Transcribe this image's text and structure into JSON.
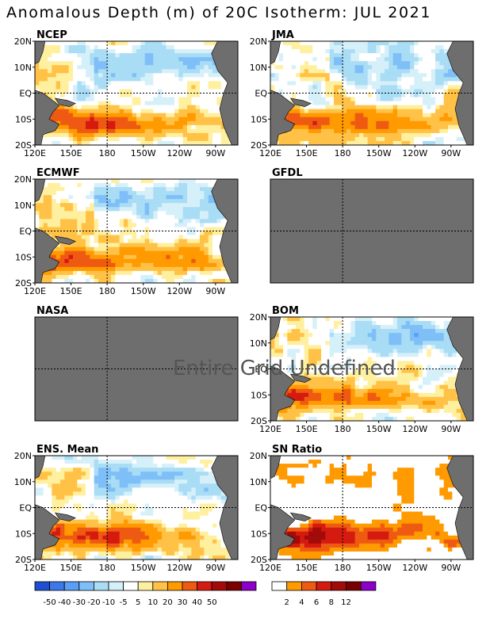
{
  "chart_data": {
    "type": "heatmap",
    "title": "Anomalous Depth (m) of 20C Isotherm: JUL 2021",
    "axes": {
      "x_ticks": [
        "120E",
        "150E",
        "180",
        "150W",
        "120W",
        "90W"
      ],
      "y_ticks": [
        "20N",
        "10N",
        "EQ",
        "10S",
        "20S"
      ],
      "lon_range": [
        "120E",
        "70W"
      ],
      "lat_range": [
        "20S",
        "20N"
      ],
      "reference_lines": [
        "180",
        "EQ"
      ]
    },
    "panels": [
      {
        "name": "NCEP",
        "status": "data",
        "pattern": "positive west and southwest, negative central-east north"
      },
      {
        "name": "JMA",
        "status": "data",
        "pattern": "strong positive south-west Pacific"
      },
      {
        "name": "ECMWF",
        "status": "data",
        "pattern": "positive south band, mixed north"
      },
      {
        "name": "GFDL",
        "status": "missing"
      },
      {
        "name": "NASA",
        "status": "missing"
      },
      {
        "name": "BOM",
        "status": "data",
        "pattern": "strong positive south band"
      },
      {
        "name": "ENS. Mean",
        "status": "data",
        "pattern": "positive south-west, negative central north"
      },
      {
        "name": "SN Ratio",
        "status": "data",
        "pattern": "high ratio in south-west Pacific"
      }
    ],
    "missing_overlay_text": "Entire Grid Undefined",
    "colorbar_anomaly": {
      "levels": [
        "-50",
        "-40",
        "-30",
        "-20",
        "-10",
        "-5",
        "5",
        "10",
        "20",
        "30",
        "40",
        "50"
      ],
      "colors": [
        "#1f4fd0",
        "#3c78e8",
        "#5a9ef5",
        "#7fbff8",
        "#a9dcf5",
        "#d6f0fa",
        "#ffffff",
        "#fff0a0",
        "#ffc247",
        "#ff9a00",
        "#ef5a12",
        "#d51a10",
        "#a30a0a",
        "#7a0000",
        "#8c00c8"
      ]
    },
    "colorbar_sn": {
      "levels": [
        "2",
        "4",
        "6",
        "8",
        "12"
      ],
      "colors": [
        "#ffffff",
        "#ff9a00",
        "#ef5a12",
        "#d51a10",
        "#a30a0a",
        "#7a0000",
        "#8c00c8"
      ]
    }
  }
}
